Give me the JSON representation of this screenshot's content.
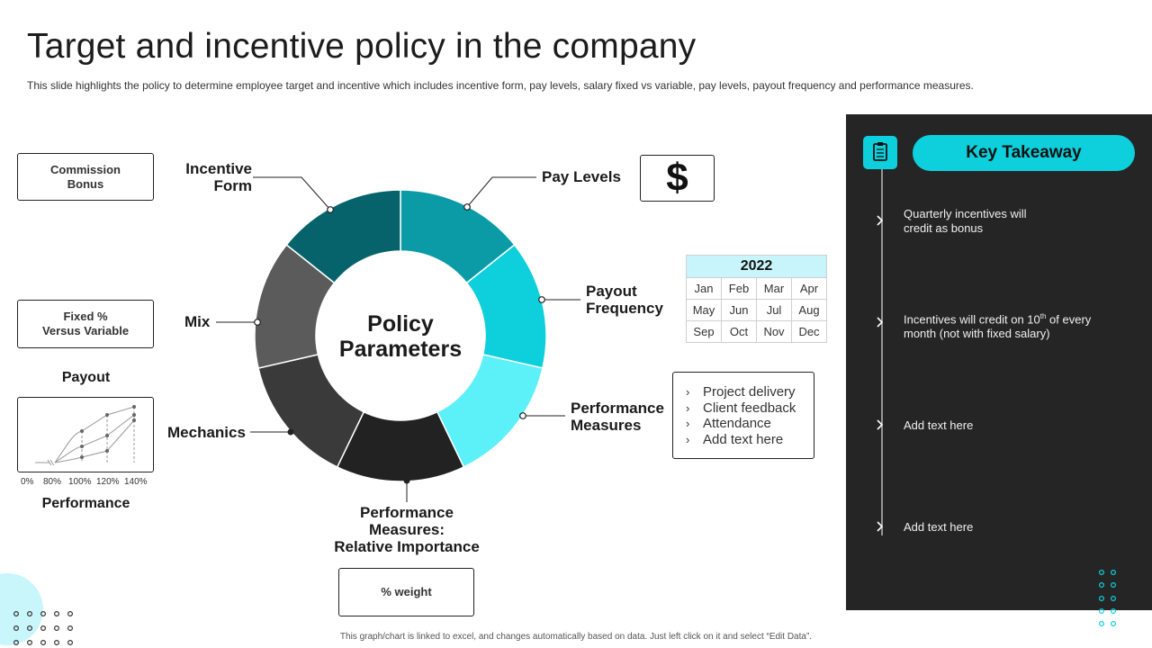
{
  "header": {
    "title": "Target and incentive policy in the company",
    "subtitle": "This slide highlights the policy to determine employee target and incentive which includes incentive form, pay levels, salary fixed vs variable, pay levels, payout frequency and performance measures."
  },
  "left": {
    "commission_box": "Commission\nBonus",
    "fixed_box": "Fixed %\nVersus Variable",
    "payout_title": "Payout",
    "payout_ticks": [
      "0%",
      "80%",
      "100%",
      "120%",
      "140%"
    ],
    "performance_title": "Performance"
  },
  "diagram": {
    "center_text": "Policy\nParameters",
    "segment_colors": [
      "#0a9ba6",
      "#0ecfdc",
      "#5cf0f8",
      "#222222",
      "#3a3a3a",
      "#5b5b5b",
      "#06636b"
    ],
    "labels": {
      "incentive_form": "Incentive\nForm",
      "pay_levels": "Pay Levels",
      "payout_frequency": "Payout\nFrequency",
      "performance_measures": "Performance\nMeasures",
      "relative_importance": "Performance\nMeasures:\nRelative Importance",
      "mechanics": "Mechanics",
      "mix": "Mix"
    },
    "dollar_symbol": "$",
    "weight_box": "% weight"
  },
  "calendar": {
    "year": "2022",
    "months": [
      [
        "Jan",
        "Feb",
        "Mar",
        "Apr"
      ],
      [
        "May",
        "Jun",
        "Jul",
        "Aug"
      ],
      [
        "Sep",
        "Oct",
        "Nov",
        "Dec"
      ]
    ]
  },
  "perf_list": [
    "Project delivery",
    "Client feedback",
    "Attendance",
    "Add text here"
  ],
  "takeaway": {
    "title": "Key Takeaway",
    "icon": "clipboard-icon",
    "items": [
      "Quarterly incentives will\ncredit as bonus",
      "Incentives will credit on 10",
      "Add text here",
      "Add text here"
    ],
    "item2_sup": "th",
    "item2_rest": " of every\nmonth (not with fixed salary)"
  },
  "footer": "This graph/chart is linked to excel, and changes automatically based on data. Just left click on it and select “Edit Data”."
}
